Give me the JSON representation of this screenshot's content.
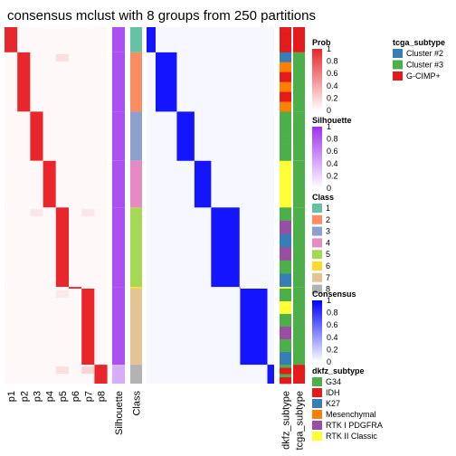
{
  "title": "consensus mclust with 8 groups from 250 partitions",
  "chart_data": {
    "type": "heatmap",
    "title": "consensus mclust with 8 groups from 250 partitions",
    "n_groups": 8,
    "n_partitions": 250,
    "probability_columns": [
      "p1",
      "p2",
      "p3",
      "p4",
      "p5",
      "p6",
      "p7",
      "p8"
    ],
    "annotation_columns": [
      "Silhouette",
      "Class"
    ],
    "right_annotation_columns": [
      "dkfz_subtype",
      "tcga_subtype"
    ],
    "class_order": [
      1,
      2,
      3,
      4,
      5,
      6,
      7,
      8
    ],
    "class_sample_fraction": [
      0.06,
      0.141,
      0.117,
      0.111,
      0.189,
      0.004,
      0.181,
      0.045
    ],
    "legends": {
      "prob": {
        "title": "Prob",
        "ticks": [
          "1",
          "0.8",
          "0.6",
          "0.4",
          "0.2",
          "0"
        ],
        "color_low": "#ffffff",
        "color_high": "#e8262b"
      },
      "silhouette": {
        "title": "Silhouette",
        "ticks": [
          "1",
          "0.8",
          "0.6",
          "0.4",
          "0.2",
          "0"
        ],
        "color_low": "#ffffff",
        "color_high": "#9e31f0"
      },
      "class": {
        "title": "Class",
        "items": [
          {
            "label": "1",
            "color": "#66c2a5"
          },
          {
            "label": "2",
            "color": "#fc8d62"
          },
          {
            "label": "3",
            "color": "#8da0cb"
          },
          {
            "label": "4",
            "color": "#e78ac3"
          },
          {
            "label": "5",
            "color": "#a6d854"
          },
          {
            "label": "6",
            "color": "#ffd92f"
          },
          {
            "label": "7",
            "color": "#e5c494"
          },
          {
            "label": "8",
            "color": "#b3b3b3"
          }
        ]
      },
      "consensus": {
        "title": "Consensus",
        "ticks": [
          "1",
          "0.8",
          "0.6",
          "0.4",
          "0.2",
          "0"
        ],
        "color_low": "#ffffff",
        "color_high": "#0000ff"
      },
      "dkfz_subtype": {
        "title": "dkfz_subtype",
        "items": [
          {
            "label": "G34",
            "color": "#4daf4a"
          },
          {
            "label": "IDH",
            "color": "#e41a1c"
          },
          {
            "label": "K27",
            "color": "#377eb8"
          },
          {
            "label": "Mesenchymal",
            "color": "#ff7f00"
          },
          {
            "label": "RTK I PDGFRA",
            "color": "#984ea3"
          },
          {
            "label": "RTK II Classic",
            "color": "#ffff33"
          }
        ]
      },
      "tcga_subtype": {
        "title": "tcga_subtype",
        "items": [
          {
            "label": "Cluster #2",
            "color": "#377eb8"
          },
          {
            "label": "Cluster #3",
            "color": "#4daf4a"
          },
          {
            "label": "G-CIMP+",
            "color": "#e41a1c"
          }
        ]
      }
    }
  }
}
